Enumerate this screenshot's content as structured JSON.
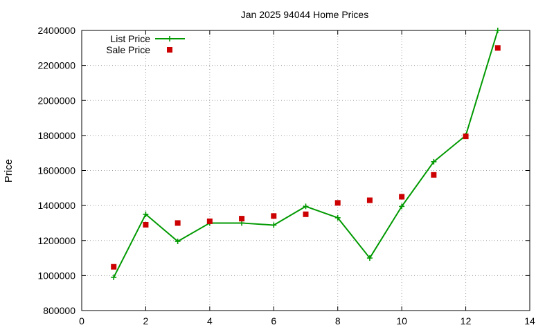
{
  "chart_data": {
    "type": "line",
    "title": "Jan 2025 94044 Home Prices",
    "xlabel": "",
    "ylabel": "Price",
    "xlim": [
      0,
      14
    ],
    "ylim": [
      800000,
      2400000
    ],
    "xticks": [
      "0",
      "2",
      "4",
      "6",
      "8",
      "10",
      "12",
      "14"
    ],
    "yticks": [
      "800000",
      "1000000",
      "1200000",
      "1400000",
      "1600000",
      "1800000",
      "2000000",
      "2200000",
      "2400000"
    ],
    "grid": true,
    "legend_position": "top-left",
    "series": [
      {
        "name": "List Price",
        "style": "linespoints",
        "marker": "plus",
        "color": "#009900",
        "x": [
          1,
          2,
          3,
          4,
          5,
          6,
          7,
          8,
          9,
          10,
          11,
          12,
          13
        ],
        "y": [
          990000,
          1350000,
          1195000,
          1300000,
          1300000,
          1288000,
          1395000,
          1330000,
          1100000,
          1395000,
          1650000,
          1800000,
          2400000
        ]
      },
      {
        "name": "Sale Price",
        "style": "points",
        "marker": "square",
        "color": "#cc0000",
        "x": [
          1,
          2,
          3,
          4,
          5,
          6,
          7,
          8,
          9,
          10,
          11,
          12,
          13
        ],
        "y": [
          1050000,
          1290000,
          1300000,
          1310000,
          1325000,
          1340000,
          1350000,
          1415000,
          1430000,
          1450000,
          1575000,
          1795000,
          2300000
        ]
      }
    ]
  }
}
